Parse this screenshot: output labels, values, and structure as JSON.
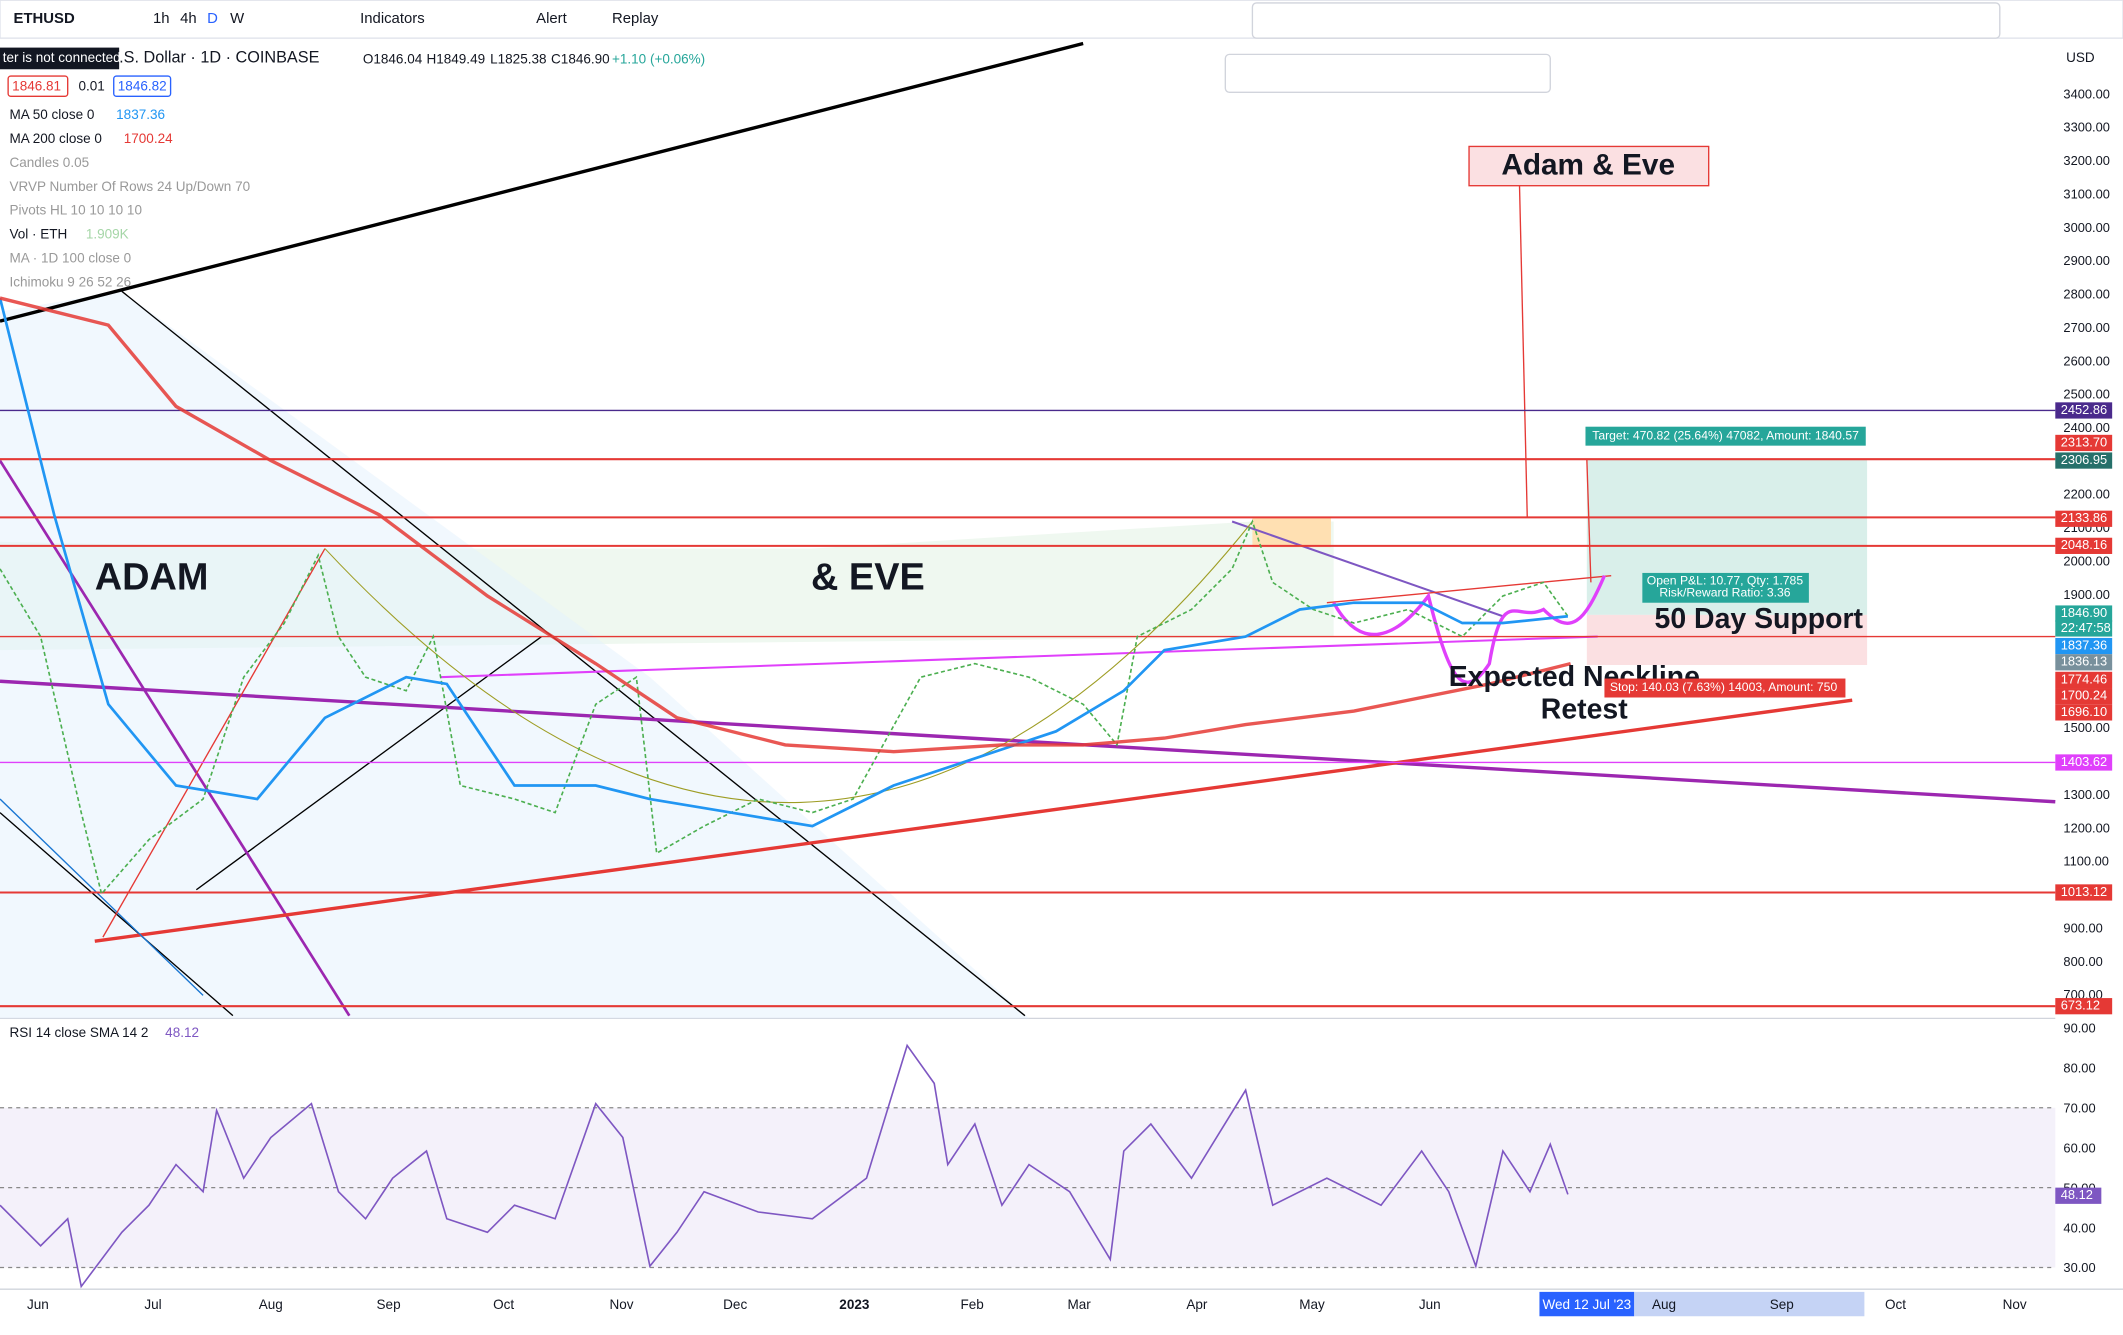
{
  "toolbar": {
    "symbol": "ETHUSD",
    "intervals": [
      "1h",
      "4h",
      "D",
      "W"
    ],
    "indicators": "Indicators",
    "alert": "Alert",
    "replay": "Replay"
  },
  "header": {
    "connection": "ter is not connected",
    "title": ".S. Dollar · 1D · COINBASE",
    "ohlc": [
      "O1846.04",
      "H1849.49",
      "L1825.38",
      "C1846.90",
      "+1.10 (+0.06%)"
    ],
    "bid": "1846.81",
    "spread": "0.01",
    "ask": "1846.82"
  },
  "indicators": [
    {
      "name": "MA 50 close 0",
      "value": "1837.36"
    },
    {
      "name": "MA 200 close 0",
      "value": "1700.24"
    },
    {
      "name": "Candles 0.05"
    },
    {
      "name": "VRVP Number Of Rows 24 Up/Down 70"
    },
    {
      "name": "Pivots HL 10 10 10 10"
    },
    {
      "name": "Vol · ETH",
      "value": "1.909K"
    },
    {
      "name": "MA · 1D 100 close 0"
    },
    {
      "name": "Ichimoku 9 26 52 26"
    }
  ],
  "annotations": {
    "adam": "ADAM",
    "eve": "& EVE",
    "title": "Adam & Eve",
    "support": "50 Day Support",
    "neckline": "Expected Neckline",
    "retest": "Retest",
    "target": "Target: 470.82 (25.64%) 47082, Amount: 1840.57",
    "pnl": "Open P&L: 10.77, Qty: 1.785",
    "rr": "Risk/Reward Ratio: 3.36",
    "stop": "Stop: 140.03 (7.63%) 14003, Amount: 750"
  },
  "price_axis": {
    "currency": "USD",
    "ticks": [
      "3400.00",
      "3300.00",
      "3200.00",
      "3100.00",
      "3000.00",
      "2900.00",
      "2800.00",
      "2700.00",
      "2600.00",
      "2500.00",
      "2400.00",
      "2200.00",
      "2100.00",
      "2000.00",
      "1900.00",
      "1500.00",
      "1300.00",
      "1200.00",
      "1100.00",
      "900.00",
      "800.00",
      "700.00"
    ],
    "labels": [
      {
        "text": "2452.86",
        "color": "#4a2a8c"
      },
      {
        "text": "2313.70",
        "color": "#e53935"
      },
      {
        "text": "2306.95",
        "color": "#26706a"
      },
      {
        "text": "2133.86",
        "color": "#e53935"
      },
      {
        "text": "2048.16",
        "color": "#e53935"
      },
      {
        "text": "1846.90",
        "color": "#26a69a"
      },
      {
        "text": "22:47:58",
        "color": "#26a69a"
      },
      {
        "text": "1837.36",
        "color": "#2196f3"
      },
      {
        "text": "1836.13",
        "color": "#78909c"
      },
      {
        "text": "1774.46",
        "color": "#e53935"
      },
      {
        "text": "1700.24",
        "color": "#e53935"
      },
      {
        "text": "1696.10",
        "color": "#e53935"
      },
      {
        "text": "1403.62",
        "color": "#e040fb"
      },
      {
        "text": "1013.12",
        "color": "#e53935"
      },
      {
        "text": "673.12",
        "color": "#e53935"
      }
    ]
  },
  "rsi": {
    "title": "RSI 14 close SMA 14 2",
    "value": "48.12",
    "ticks": [
      "90.00",
      "80.00",
      "70.00",
      "60.00",
      "50.00",
      "40.00",
      "30.00"
    ]
  },
  "time_axis": {
    "labels": [
      "Jun",
      "Jul",
      "Aug",
      "Sep",
      "Oct",
      "Nov",
      "Dec",
      "2023",
      "Feb",
      "Mar",
      "Apr",
      "May",
      "Jun",
      "Aug",
      "Sep",
      "Oct",
      "Nov"
    ],
    "cursor": "Wed 12 Jul '23"
  }
}
